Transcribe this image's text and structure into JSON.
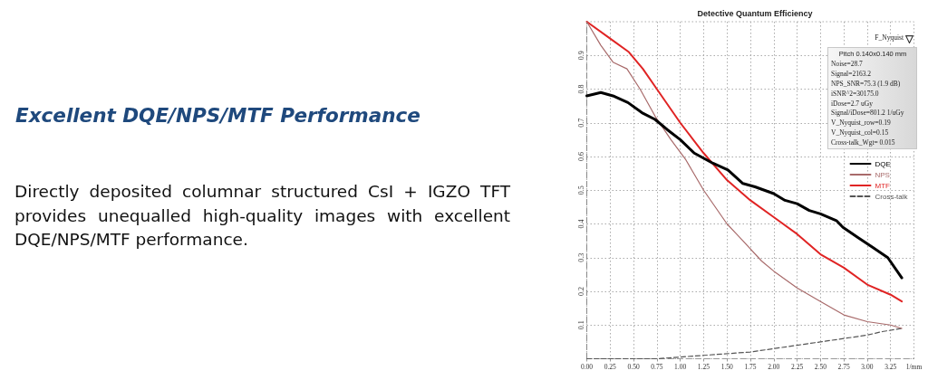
{
  "chart_data": {
    "type": "line",
    "title": "Detective Quantum Efficiency",
    "subtitle": "Excellent DQE/NPS/MTF Performance",
    "xlabel": "1/mm",
    "annotations": [
      "Directly deposited columnar structured CsI + IGZO TFT provides unequalled high-quality images with excellent DQE/NPS/MTF performance.",
      "F_Nyquist",
      "Pitch 0.140x0.140 mm\nNoise=28.7\nSignal=2163.2\nNPS_SNR=75.3 (1.9 dB)\niSNR^2=30175.0\niDose=2.7 uGy\nSignal/iDose=801.2 1/uGy\nV_Nyquist_row=0.19\nV_Nyquist_col=0.15\nCross-talk_Wgt= 0.015"
    ],
    "xlim": [
      0,
      3.5
    ],
    "xticks": [
      {
        "value": 0,
        "label": "0.00"
      },
      0.25,
      {
        "value": 0.5,
        "label": "0.50"
      },
      0.75,
      {
        "value": 1,
        "label": "1.00"
      },
      1.25,
      {
        "value": 1.5,
        "label": "1.50"
      },
      1.75,
      {
        "value": 2,
        "label": "2.00"
      },
      2.25,
      {
        "value": 2.5,
        "label": "2.50"
      },
      2.75,
      {
        "value": 3,
        "label": "3.00"
      },
      3.25
    ],
    "ylim": [
      0,
      1
    ],
    "yticks": [
      0.1,
      0.2,
      0.3,
      0.4,
      0.5,
      0.6,
      0.7,
      0.8,
      0.9
    ],
    "grid": true,
    "legend": "right",
    "marker": "none",
    "line_style": "solid",
    "series": [
      {
        "name": "DQE",
        "color": "#000000",
        "x": [
          0,
          0.15,
          0.28,
          0.44,
          0.59,
          0.73,
          0.86,
          1.0,
          1.15,
          1.35,
          1.51,
          1.67,
          1.8,
          2.0,
          2.12,
          2.25,
          2.38,
          2.5,
          2.67,
          2.74,
          2.9,
          3.06,
          3.22,
          3.37
        ],
        "values": [
          0.78,
          0.79,
          0.78,
          0.76,
          0.73,
          0.71,
          0.68,
          0.65,
          0.61,
          0.58,
          0.56,
          0.52,
          0.51,
          0.49,
          0.47,
          0.46,
          0.44,
          0.43,
          0.41,
          0.39,
          0.36,
          0.33,
          0.3,
          0.24
        ]
      },
      {
        "name": "NPS",
        "color": "#a86a6a",
        "x": [
          0,
          0.15,
          0.28,
          0.43,
          0.57,
          0.73,
          0.9,
          1.06,
          1.25,
          1.5,
          1.67,
          1.87,
          2.0,
          2.25,
          2.5,
          2.75,
          3.0,
          3.25,
          3.37
        ],
        "values": [
          1.0,
          0.93,
          0.88,
          0.86,
          0.8,
          0.72,
          0.65,
          0.59,
          0.5,
          0.4,
          0.35,
          0.29,
          0.26,
          0.21,
          0.17,
          0.13,
          0.11,
          0.1,
          0.09
        ]
      },
      {
        "name": "MTF",
        "color": "#e02424",
        "x": [
          0,
          0.25,
          0.45,
          0.6,
          0.75,
          1.0,
          1.25,
          1.5,
          1.75,
          2.0,
          2.25,
          2.5,
          2.75,
          3.0,
          3.25,
          3.37
        ],
        "values": [
          1.0,
          0.95,
          0.91,
          0.86,
          0.8,
          0.7,
          0.61,
          0.53,
          0.47,
          0.42,
          0.37,
          0.31,
          0.27,
          0.22,
          0.19,
          0.17
        ]
      },
      {
        "name": "Cross-talk",
        "color": "#555555",
        "line_style": "dashed",
        "x": [
          0,
          0.75,
          1.25,
          1.75,
          2.0,
          2.25,
          2.5,
          2.75,
          3.0,
          3.15,
          3.37
        ],
        "values": [
          0,
          0,
          0.01,
          0.02,
          0.03,
          0.04,
          0.05,
          0.06,
          0.07,
          0.08,
          0.09
        ]
      }
    ]
  }
}
